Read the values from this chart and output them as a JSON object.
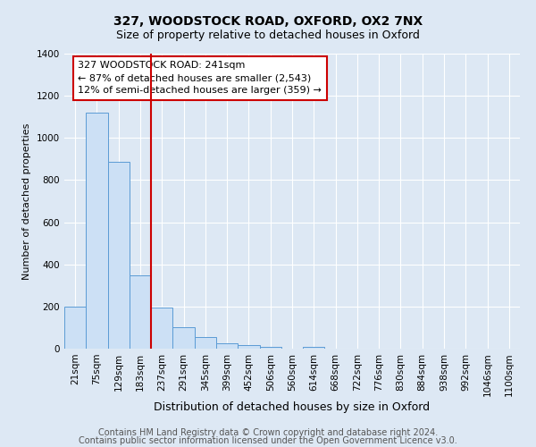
{
  "title": "327, WOODSTOCK ROAD, OXFORD, OX2 7NX",
  "subtitle": "Size of property relative to detached houses in Oxford",
  "xlabel": "Distribution of detached houses by size in Oxford",
  "ylabel": "Number of detached properties",
  "bar_labels": [
    "21sqm",
    "75sqm",
    "129sqm",
    "183sqm",
    "237sqm",
    "291sqm",
    "345sqm",
    "399sqm",
    "452sqm",
    "506sqm",
    "560sqm",
    "614sqm",
    "668sqm",
    "722sqm",
    "776sqm",
    "830sqm",
    "884sqm",
    "938sqm",
    "992sqm",
    "1046sqm",
    "1100sqm"
  ],
  "bar_values": [
    200,
    1120,
    885,
    350,
    195,
    100,
    55,
    25,
    15,
    10,
    0,
    10,
    0,
    0,
    0,
    0,
    0,
    0,
    0,
    0,
    0
  ],
  "bar_color": "#cce0f5",
  "bar_edge_color": "#5b9bd5",
  "vline_x_index": 4,
  "vline_color": "#cc0000",
  "annotation_line1": "327 WOODSTOCK ROAD: 241sqm",
  "annotation_line2": "← 87% of detached houses are smaller (2,543)",
  "annotation_line3": "12% of semi-detached houses are larger (359) →",
  "ylim": [
    0,
    1400
  ],
  "yticks": [
    0,
    200,
    400,
    600,
    800,
    1000,
    1200,
    1400
  ],
  "footer_line1": "Contains HM Land Registry data © Crown copyright and database right 2024.",
  "footer_line2": "Contains public sector information licensed under the Open Government Licence v3.0.",
  "background_color": "#dde8f4",
  "plot_bg_color": "#dde8f4",
  "grid_color": "#ffffff",
  "title_fontsize": 10,
  "subtitle_fontsize": 9,
  "ylabel_fontsize": 8,
  "xlabel_fontsize": 9,
  "annotation_fontsize": 8,
  "footer_fontsize": 7,
  "tick_fontsize": 7.5
}
